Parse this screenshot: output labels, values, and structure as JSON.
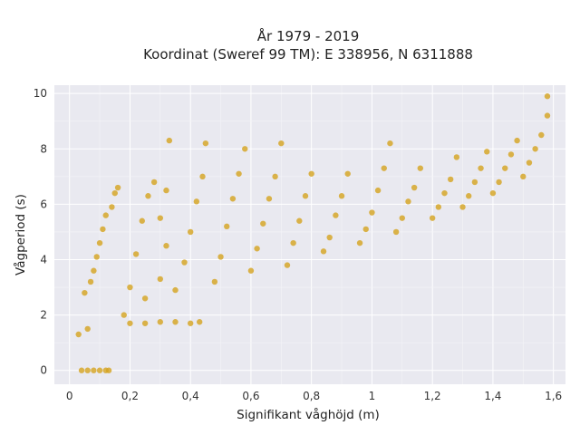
{
  "chart_data": {
    "type": "scatter",
    "title_line1": "År 1979 - 2019",
    "title_line2": "Koordinat (Sweref 99 TM): E 338956, N 6311888",
    "xlabel": "Signifikant våghöjd (m)",
    "ylabel": "Vågperiod (s)",
    "xlim": [
      -0.05,
      1.64
    ],
    "ylim": [
      -0.5,
      10.3
    ],
    "x_ticks": [
      0,
      0.2,
      0.4,
      0.6,
      0.8,
      1,
      1.2,
      1.4,
      1.6
    ],
    "x_tick_labels": [
      "0",
      "0,2",
      "0,4",
      "0,6",
      "0,8",
      "1",
      "1,2",
      "1,4",
      "1,6"
    ],
    "y_ticks": [
      0,
      2,
      4,
      6,
      8,
      10
    ],
    "y_tick_labels": [
      "0",
      "2",
      "4",
      "6",
      "8",
      "10"
    ],
    "grid": true,
    "marker_color": "#d4a21e",
    "background_color": "#e9e9f0",
    "series": [
      {
        "points": [
          [
            0.04,
            0.0
          ],
          [
            0.06,
            0.0
          ],
          [
            0.08,
            0.0
          ],
          [
            0.1,
            0.0
          ],
          [
            0.12,
            0.0
          ],
          [
            0.13,
            0.0
          ],
          [
            0.03,
            1.3
          ],
          [
            0.05,
            2.8
          ],
          [
            0.08,
            3.6
          ],
          [
            0.1,
            4.6
          ],
          [
            0.12,
            5.6
          ],
          [
            0.15,
            6.4
          ],
          [
            0.06,
            1.5
          ],
          [
            0.07,
            3.2
          ],
          [
            0.09,
            4.1
          ],
          [
            0.11,
            5.1
          ],
          [
            0.14,
            5.9
          ],
          [
            0.16,
            6.6
          ],
          [
            0.2,
            1.7
          ],
          [
            0.25,
            1.7
          ],
          [
            0.3,
            1.75
          ],
          [
            0.35,
            1.75
          ],
          [
            0.4,
            1.7
          ],
          [
            0.43,
            1.75
          ],
          [
            0.18,
            2.0
          ],
          [
            0.2,
            3.0
          ],
          [
            0.22,
            4.2
          ],
          [
            0.24,
            5.4
          ],
          [
            0.26,
            6.3
          ],
          [
            0.28,
            6.8
          ],
          [
            0.25,
            2.6
          ],
          [
            0.3,
            3.3
          ],
          [
            0.32,
            4.5
          ],
          [
            0.3,
            5.5
          ],
          [
            0.32,
            6.5
          ],
          [
            0.33,
            8.3
          ],
          [
            0.35,
            2.9
          ],
          [
            0.38,
            3.9
          ],
          [
            0.4,
            5.0
          ],
          [
            0.42,
            6.1
          ],
          [
            0.44,
            7.0
          ],
          [
            0.45,
            8.2
          ],
          [
            0.48,
            3.2
          ],
          [
            0.5,
            4.1
          ],
          [
            0.52,
            5.2
          ],
          [
            0.54,
            6.2
          ],
          [
            0.56,
            7.1
          ],
          [
            0.58,
            8.0
          ],
          [
            0.6,
            3.6
          ],
          [
            0.62,
            4.4
          ],
          [
            0.64,
            5.3
          ],
          [
            0.66,
            6.2
          ],
          [
            0.68,
            7.0
          ],
          [
            0.7,
            8.2
          ],
          [
            0.72,
            3.8
          ],
          [
            0.74,
            4.6
          ],
          [
            0.76,
            5.4
          ],
          [
            0.78,
            6.3
          ],
          [
            0.8,
            7.1
          ],
          [
            0.84,
            4.3
          ],
          [
            0.86,
            4.8
          ],
          [
            0.88,
            5.6
          ],
          [
            0.9,
            6.3
          ],
          [
            0.92,
            7.1
          ],
          [
            0.96,
            4.6
          ],
          [
            0.98,
            5.1
          ],
          [
            1.0,
            5.7
          ],
          [
            1.02,
            6.5
          ],
          [
            1.04,
            7.3
          ],
          [
            1.06,
            8.2
          ],
          [
            1.08,
            5.0
          ],
          [
            1.1,
            5.5
          ],
          [
            1.12,
            6.1
          ],
          [
            1.14,
            6.6
          ],
          [
            1.16,
            7.3
          ],
          [
            1.2,
            5.5
          ],
          [
            1.22,
            5.9
          ],
          [
            1.24,
            6.4
          ],
          [
            1.26,
            6.9
          ],
          [
            1.28,
            7.7
          ],
          [
            1.3,
            5.9
          ],
          [
            1.32,
            6.3
          ],
          [
            1.34,
            6.8
          ],
          [
            1.36,
            7.3
          ],
          [
            1.38,
            7.9
          ],
          [
            1.4,
            6.4
          ],
          [
            1.42,
            6.8
          ],
          [
            1.44,
            7.3
          ],
          [
            1.46,
            7.8
          ],
          [
            1.48,
            8.3
          ],
          [
            1.5,
            7.0
          ],
          [
            1.52,
            7.5
          ],
          [
            1.54,
            8.0
          ],
          [
            1.56,
            8.5
          ],
          [
            1.58,
            9.2
          ],
          [
            1.58,
            9.9
          ]
        ]
      }
    ]
  }
}
